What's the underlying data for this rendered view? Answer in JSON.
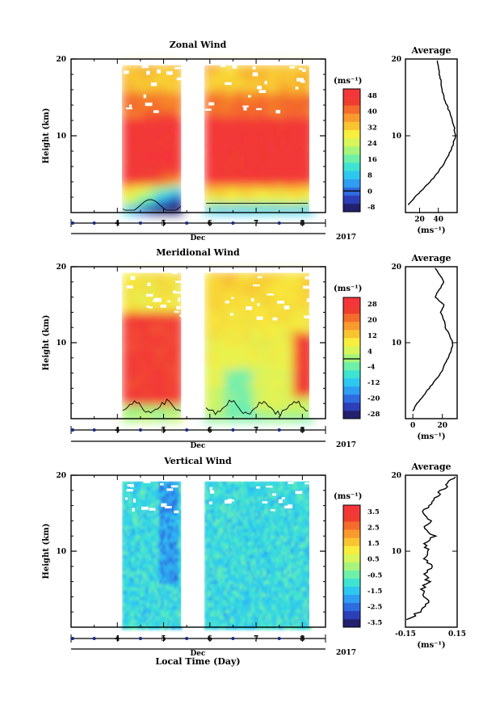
{
  "palette": [
    "#23206e",
    "#2b3fb8",
    "#2f6be0",
    "#2e9ef2",
    "#2dc8f0",
    "#3ee3d2",
    "#6ef0a8",
    "#a6f57a",
    "#d8f55a",
    "#f8ee3c",
    "#f8c430",
    "#f89a2c",
    "#f46c2c",
    "#f03c30",
    "#f4363a"
  ],
  "figure": {
    "xlabel": "Local Time (Day)",
    "xaxis_month": "Dec",
    "xaxis_year": "2017",
    "xticks": [
      "4",
      "5",
      "6",
      "7",
      "8"
    ],
    "yticks": [
      "20",
      "10"
    ],
    "ylabel": "Height (km)",
    "avg_title": "Average",
    "unit_label": "(ms⁻¹)",
    "avg_unit": "(ms⁻¹)"
  },
  "chart_data": [
    {
      "type": "heatmap",
      "title": "Zonal Wind",
      "ylabel": "Height (km)",
      "xlabel": "",
      "x_range_day": [
        3.0,
        8.5
      ],
      "ylim": [
        0,
        20
      ],
      "data_gap_day": [
        5.38,
        5.88
      ],
      "colorbar_ticks": [
        "48",
        "40",
        "32",
        "24",
        "16",
        "8",
        "0",
        "-8"
      ],
      "colorbar_range": [
        -8,
        52
      ],
      "zero_contour": 0,
      "profile": {
        "title": "Average",
        "xticks": [
          "20",
          "40"
        ],
        "xlim": [
          5,
          60
        ],
        "height_km": [
          1,
          2,
          3,
          4,
          5,
          6,
          7,
          8,
          9,
          10,
          11,
          12,
          13,
          14,
          15,
          16,
          17,
          18,
          19,
          19.8
        ],
        "value": [
          8,
          15,
          23,
          31,
          38,
          44,
          49,
          53,
          56,
          58,
          57,
          55,
          52,
          49,
          46,
          44,
          43,
          41,
          40,
          39
        ]
      }
    },
    {
      "type": "heatmap",
      "title": "Meridional Wind",
      "ylabel": "Height (km)",
      "xlabel": "",
      "x_range_day": [
        3.0,
        8.5
      ],
      "ylim": [
        0,
        20
      ],
      "data_gap_day": [
        5.38,
        5.88
      ],
      "colorbar_ticks": [
        "28",
        "20",
        "12",
        "4",
        "-4",
        "-12",
        "-20",
        "-28"
      ],
      "colorbar_range": [
        -28,
        32
      ],
      "zero_contour": 0,
      "profile": {
        "title": "Average",
        "xticks": [
          "0",
          "20"
        ],
        "xlim": [
          -5,
          30
        ],
        "height_km": [
          1,
          2,
          3,
          4,
          5,
          6,
          7,
          8,
          9,
          10,
          11,
          12,
          13,
          14,
          15,
          16,
          17,
          18,
          19,
          19.8
        ],
        "value": [
          0,
          3,
          7,
          11,
          15,
          19,
          21,
          24,
          26,
          27,
          25,
          22,
          21,
          19,
          21,
          15,
          18,
          21,
          18,
          15
        ]
      }
    },
    {
      "type": "heatmap",
      "title": "Vertical Wind",
      "ylabel": "Height (km)",
      "xlabel": "Local Time (Day)",
      "x_range_day": [
        3.0,
        8.5
      ],
      "ylim": [
        0,
        20
      ],
      "data_gap_day": [
        5.38,
        5.88
      ],
      "colorbar_ticks": [
        "3.5",
        "2.5",
        "1.5",
        "0.5",
        "-0.5",
        "-1.5",
        "-2.5",
        "-3.5"
      ],
      "colorbar_range": [
        -4,
        4
      ],
      "profile": {
        "title": "Average",
        "xticks": [
          "-0.15",
          "0.15"
        ],
        "xlim": [
          -0.15,
          0.15
        ],
        "height_km": [
          1,
          2,
          3,
          4,
          5,
          6,
          7,
          8,
          9,
          10,
          11,
          12,
          13,
          14,
          15,
          16,
          17,
          18,
          19,
          19.8
        ],
        "value": [
          -0.13,
          -0.07,
          -0.02,
          -0.03,
          -0.05,
          -0.02,
          -0.04,
          0.0,
          -0.03,
          -0.01,
          -0.04,
          0.02,
          -0.04,
          0.01,
          -0.06,
          -0.02,
          0.02,
          0.06,
          0.1,
          0.14
        ]
      }
    }
  ]
}
